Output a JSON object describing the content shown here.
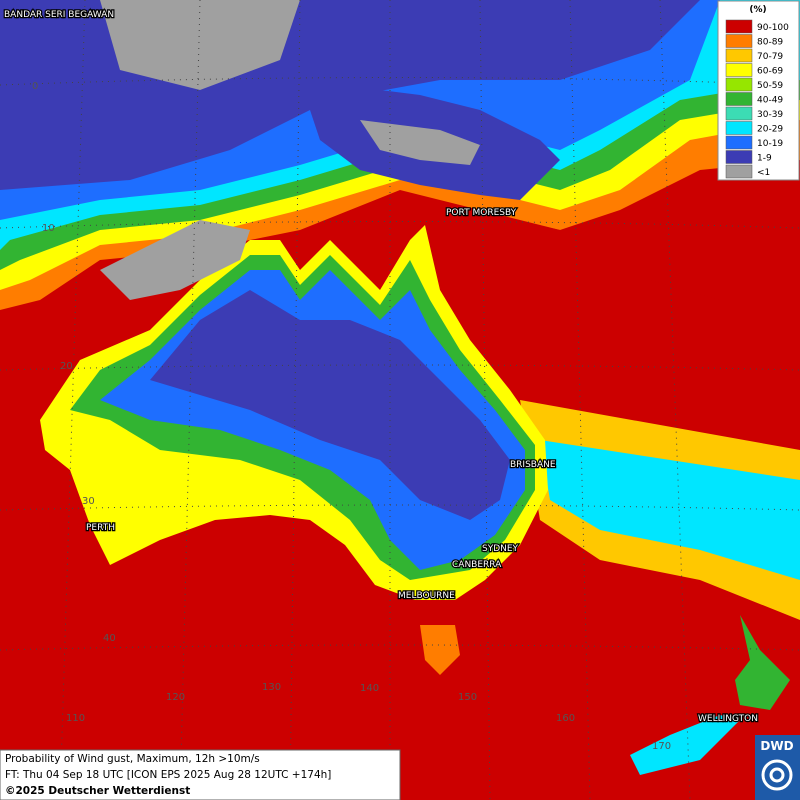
{
  "map": {
    "places": [
      "BANDAR SERI BEGAWAN",
      "PORT MORESBY",
      "BRISBANE",
      "PERTH",
      "SYDNEY",
      "CANBERRA",
      "MELBOURNE",
      "WELLINGTON"
    ],
    "lat_labels": [
      "0",
      "10",
      "20",
      "30",
      "40"
    ],
    "lon_labels": [
      "110",
      "120",
      "130",
      "140",
      "150",
      "160",
      "170"
    ]
  },
  "legend": {
    "title": "(%)",
    "items": [
      {
        "label": "90-100",
        "color": "#cc0000"
      },
      {
        "label": "80-89",
        "color": "#ff7d00"
      },
      {
        "label": "70-79",
        "color": "#ffc800"
      },
      {
        "label": "60-69",
        "color": "#ffff00"
      },
      {
        "label": "50-59",
        "color": "#96e600"
      },
      {
        "label": "40-49",
        "color": "#32b432"
      },
      {
        "label": "30-39",
        "color": "#3cdcb4"
      },
      {
        "label": "20-29",
        "color": "#00e6ff"
      },
      {
        "label": "10-19",
        "color": "#1e6eff"
      },
      {
        "label": "1-9",
        "color": "#3c3cb4"
      },
      {
        "label": "<1",
        "color": "#a0a0a0"
      }
    ]
  },
  "footer": {
    "line1": "Probability of Wind gust, Maximum, 12h >10m/s",
    "line2": "FT: Thu 04 Sep 18 UTC [ICON EPS 2025 Aug 28 12UTC +174h]",
    "line3": "©2025 Deutscher Wetterdienst"
  },
  "logo": "DWD"
}
